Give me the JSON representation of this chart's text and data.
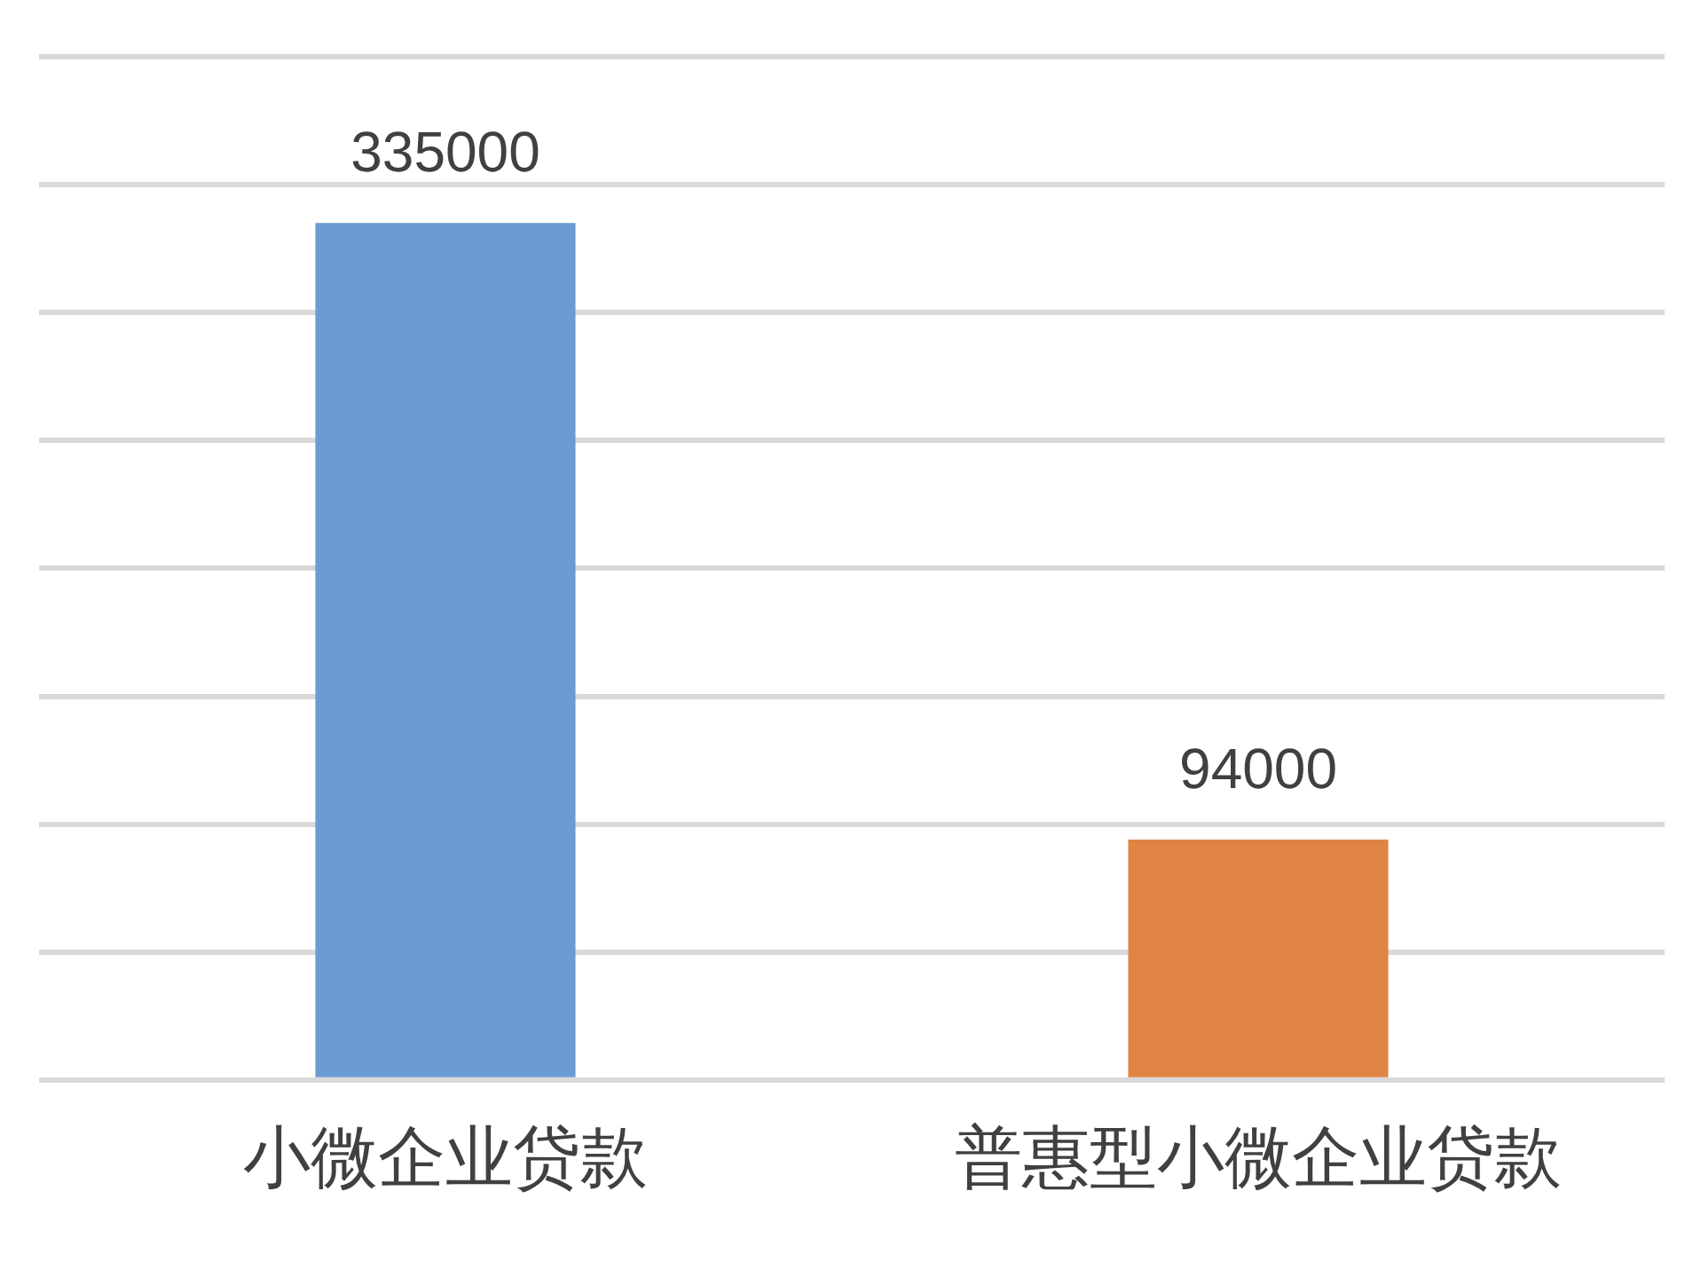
{
  "chart_data": {
    "type": "bar",
    "categories": [
      "小微企业贷款",
      "普惠型小微企业贷款"
    ],
    "values": [
      335000,
      94000
    ],
    "colors": [
      "#6a9bd1",
      "#e08444"
    ],
    "ylim": [
      0,
      400000
    ],
    "yticks": [
      0,
      50000,
      100000,
      150000,
      200000,
      250000,
      300000,
      350000,
      400000
    ],
    "grid": "y",
    "tick_labels": "x",
    "data_labels": true,
    "legend": false
  }
}
